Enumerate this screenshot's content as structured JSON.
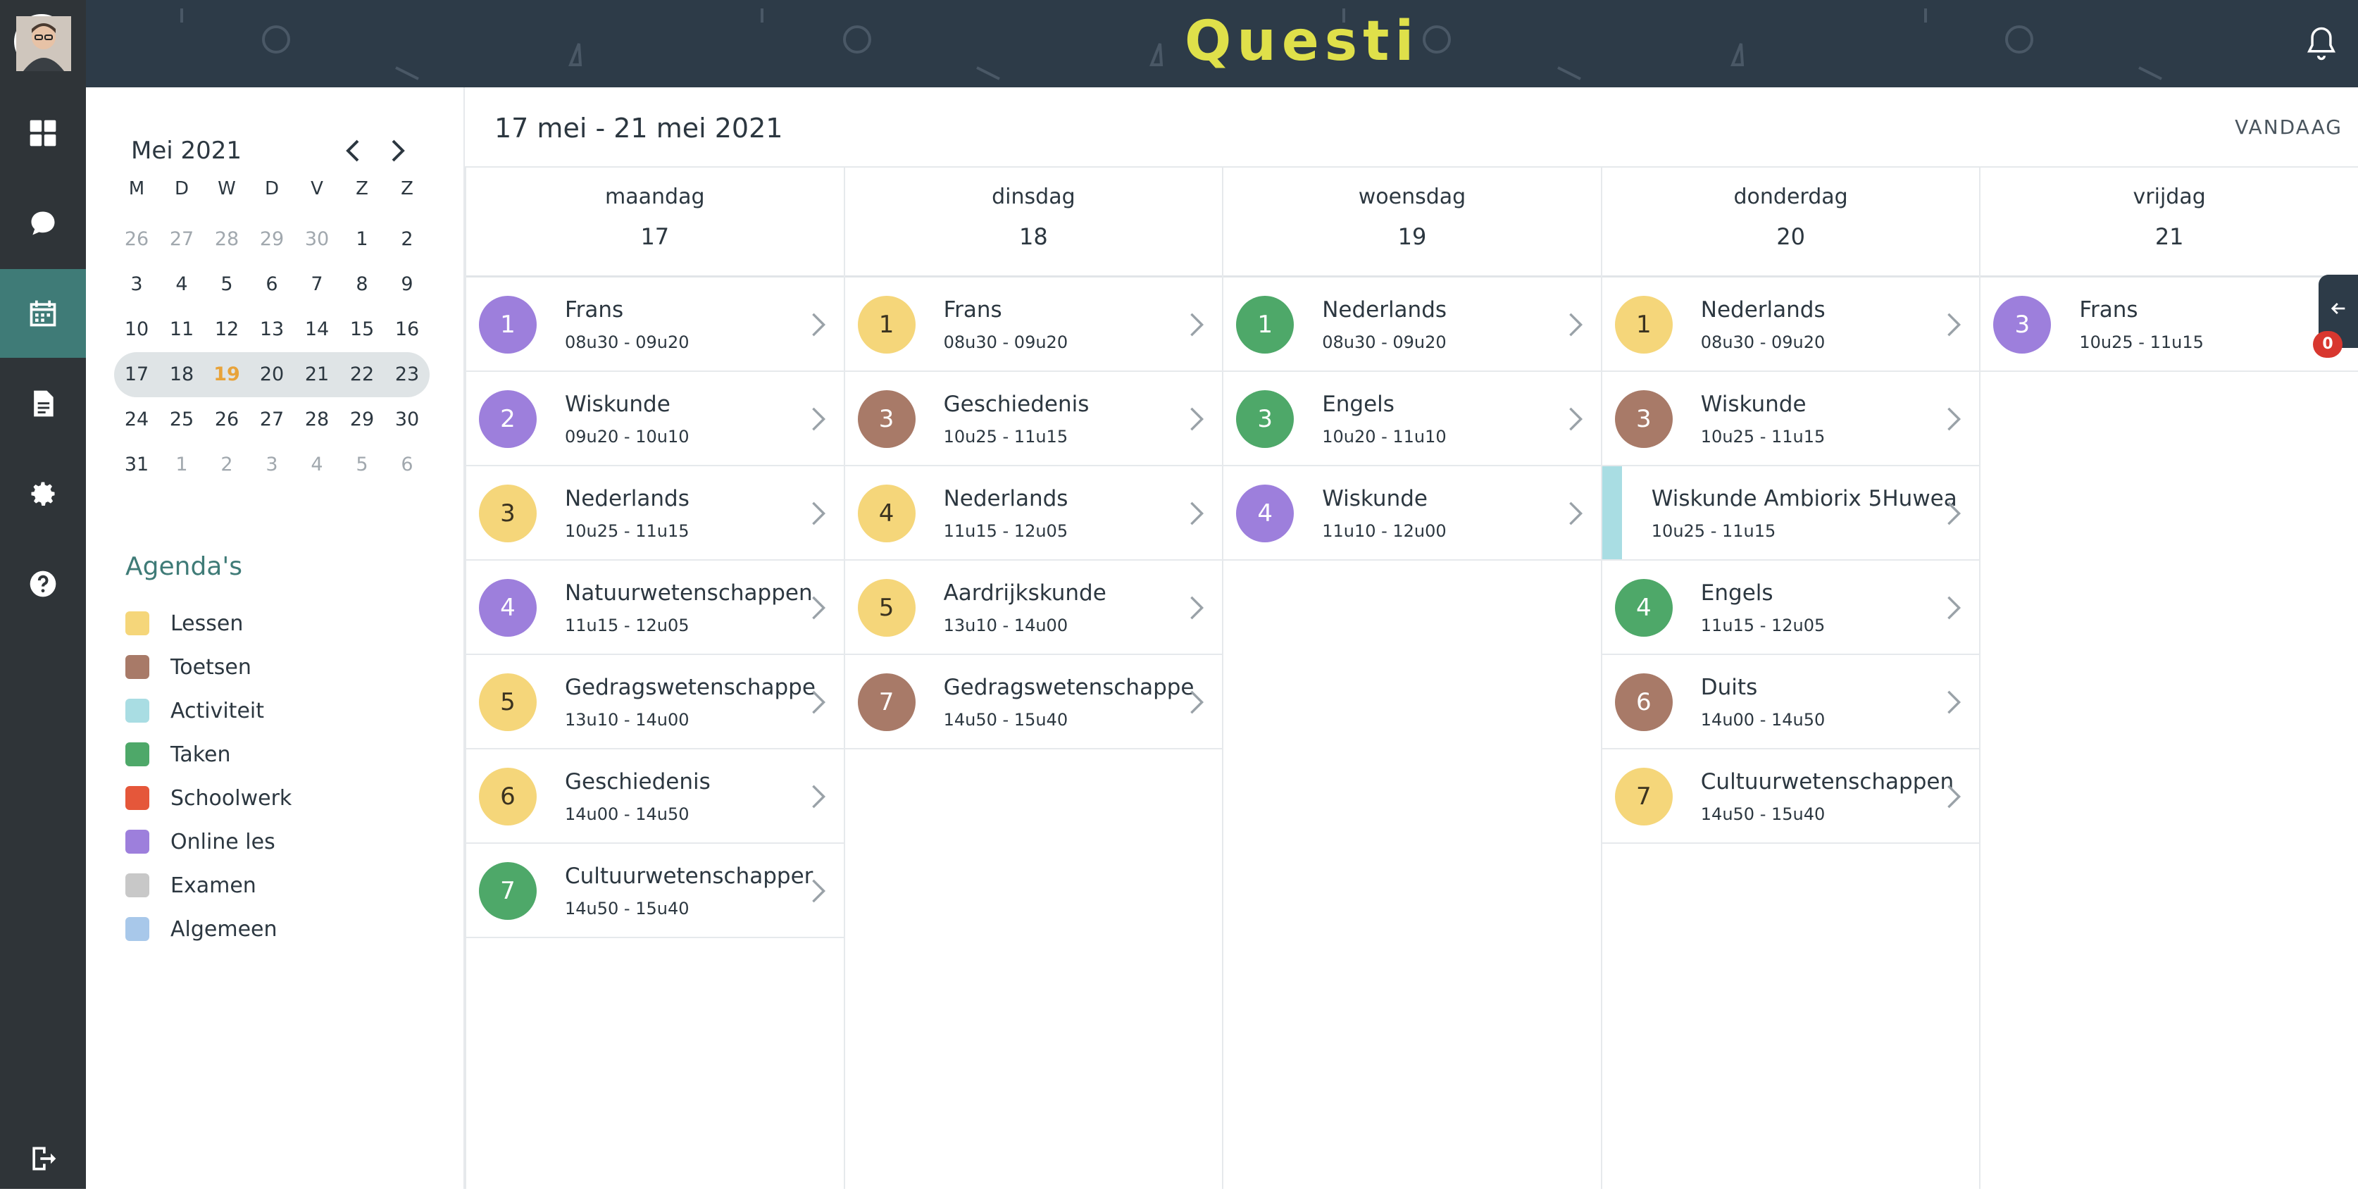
{
  "app": {
    "logo_text": "Questi"
  },
  "rail": {
    "items": [
      "dashboard",
      "messages",
      "calendar",
      "documents",
      "settings",
      "help",
      "logout"
    ],
    "active": "calendar"
  },
  "mini_calendar": {
    "title": "Mei 2021",
    "weekdays": [
      "M",
      "D",
      "W",
      "D",
      "V",
      "Z",
      "Z"
    ],
    "weeks": [
      [
        "26",
        "27",
        "28",
        "29",
        "30",
        "1",
        "2"
      ],
      [
        "3",
        "4",
        "5",
        "6",
        "7",
        "8",
        "9"
      ],
      [
        "10",
        "11",
        "12",
        "13",
        "14",
        "15",
        "16"
      ],
      [
        "17",
        "18",
        "19",
        "20",
        "21",
        "22",
        "23"
      ],
      [
        "24",
        "25",
        "26",
        "27",
        "28",
        "29",
        "30"
      ],
      [
        "31",
        "1",
        "2",
        "3",
        "4",
        "5",
        "6"
      ]
    ],
    "today": "19",
    "selected_week_index": 3
  },
  "agendas": {
    "title": "Agenda's",
    "items": [
      {
        "label": "Lessen",
        "color": "#f5d67a"
      },
      {
        "label": "Toetsen",
        "color": "#a87a68"
      },
      {
        "label": "Activiteit",
        "color": "#a9dde3"
      },
      {
        "label": "Taken",
        "color": "#4ea869"
      },
      {
        "label": "Schoolwerk",
        "color": "#e5573a"
      },
      {
        "label": "Online les",
        "color": "#9d7fdc"
      },
      {
        "label": "Examen",
        "color": "#c8c8c8"
      },
      {
        "label": "Algemeen",
        "color": "#a8c8ea"
      }
    ]
  },
  "week": {
    "title": "17 mei - 21 mei 2021",
    "today_label": "VANDAAG"
  },
  "side_tab": {
    "count": "0"
  },
  "colors": {
    "yellow": "#f5d67a",
    "brown": "#a87a68",
    "green": "#4ea869",
    "purple": "#9d7fdc",
    "activity": "#a9dde3"
  },
  "days": [
    {
      "name": "maandag",
      "num": "17",
      "lessons": [
        {
          "hour": "1",
          "title": "Frans",
          "time": "08u30 - 09u20",
          "color": "purple"
        },
        {
          "hour": "2",
          "title": "Wiskunde",
          "time": "09u20 - 10u10",
          "color": "purple"
        },
        {
          "hour": "3",
          "title": "Nederlands",
          "time": "10u25 - 11u15",
          "color": "yellow"
        },
        {
          "hour": "4",
          "title": "Natuurwetenschappen",
          "time": "11u15 - 12u05",
          "color": "purple"
        },
        {
          "hour": "5",
          "title": "Gedragswetenschappe",
          "time": "13u10 - 14u00",
          "color": "yellow"
        },
        {
          "hour": "6",
          "title": "Geschiedenis",
          "time": "14u00 - 14u50",
          "color": "yellow"
        },
        {
          "hour": "7",
          "title": "Cultuurwetenschapper",
          "time": "14u50 - 15u40",
          "color": "green"
        }
      ]
    },
    {
      "name": "dinsdag",
      "num": "18",
      "lessons": [
        {
          "hour": "1",
          "title": "Frans",
          "time": "08u30 - 09u20",
          "color": "yellow"
        },
        {
          "hour": "3",
          "title": "Geschiedenis",
          "time": "10u25 - 11u15",
          "color": "brown"
        },
        {
          "hour": "4",
          "title": "Nederlands",
          "time": "11u15 - 12u05",
          "color": "yellow"
        },
        {
          "hour": "5",
          "title": "Aardrijkskunde",
          "time": "13u10 - 14u00",
          "color": "yellow"
        },
        {
          "hour": "7",
          "title": "Gedragswetenschappe",
          "time": "14u50 - 15u40",
          "color": "brown"
        }
      ]
    },
    {
      "name": "woensdag",
      "num": "19",
      "lessons": [
        {
          "hour": "1",
          "title": "Nederlands",
          "time": "08u30 - 09u20",
          "color": "green"
        },
        {
          "hour": "3",
          "title": "Engels",
          "time": "10u20 - 11u10",
          "color": "green"
        },
        {
          "hour": "4",
          "title": "Wiskunde",
          "time": "11u10 - 12u00",
          "color": "purple"
        }
      ]
    },
    {
      "name": "donderdag",
      "num": "20",
      "lessons": [
        {
          "hour": "1",
          "title": "Nederlands",
          "time": "08u30 - 09u20",
          "color": "yellow"
        },
        {
          "hour": "3",
          "title": "Wiskunde",
          "time": "10u25 - 11u15",
          "color": "brown"
        },
        {
          "hour": "",
          "title": "Wiskunde Ambiorix 5Huwea",
          "time": "10u25 - 11u15",
          "color": "activity",
          "activity": true
        },
        {
          "hour": "4",
          "title": "Engels",
          "time": "11u15 - 12u05",
          "color": "green"
        },
        {
          "hour": "6",
          "title": "Duits",
          "time": "14u00 - 14u50",
          "color": "brown"
        },
        {
          "hour": "7",
          "title": "Cultuurwetenschappen",
          "time": "14u50 - 15u40",
          "color": "yellow"
        }
      ]
    },
    {
      "name": "vrijdag",
      "num": "21",
      "lessons": [
        {
          "hour": "3",
          "title": "Frans",
          "time": "10u25 - 11u15",
          "color": "purple"
        }
      ]
    }
  ]
}
